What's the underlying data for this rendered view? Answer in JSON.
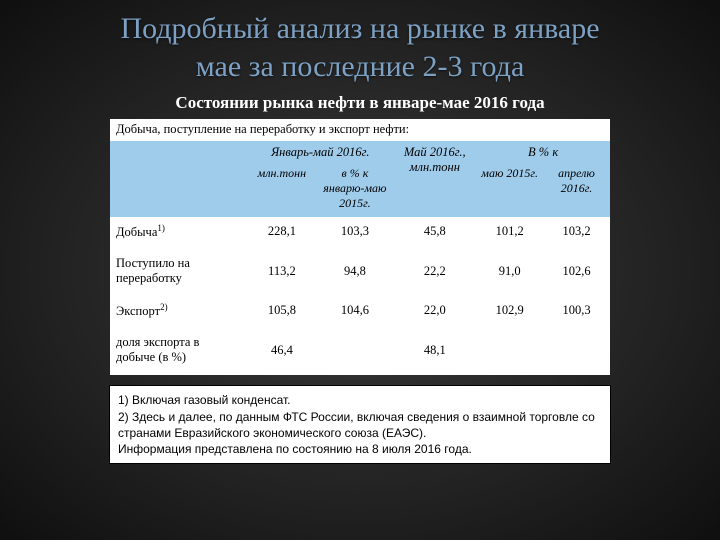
{
  "title_line1": "Подробный анализ на рынке в январе",
  "title_line2": "мае за последние 2-3 года",
  "subtitle": "Состоянии рынка нефти в январе-мае 2016 года",
  "table": {
    "caption": "Добыча, поступление на переработку и экспорт нефти:",
    "header_top": {
      "jan_may": "Январь-май 2016г.",
      "may": "Май 2016г., млн.тонн",
      "pct": "В % к"
    },
    "header_sub": {
      "mln": "млн.тонн",
      "pct_jan_may": "в % к январю-маю 2015г.",
      "may2015": "маю 2015г.",
      "apr2016": "апрелю 2016г."
    },
    "rows": [
      {
        "label": "Добыча",
        "sup": "1)",
        "c1": "228,1",
        "c2": "103,3",
        "c3": "45,8",
        "c4": "101,2",
        "c5": "103,2"
      },
      {
        "label": "Поступило на переработку",
        "sup": "",
        "c1": "113,2",
        "c2": "94,8",
        "c3": "22,2",
        "c4": "91,0",
        "c5": "102,6"
      },
      {
        "label": "Экспорт",
        "sup": "2)",
        "c1": "105,8",
        "c2": "104,6",
        "c3": "22,0",
        "c4": "102,9",
        "c5": "100,3"
      },
      {
        "label": "доля экспорта в добыче (в %)",
        "sup": "",
        "c1": "46,4",
        "c2": "",
        "c3": "48,1",
        "c4": "",
        "c5": ""
      }
    ]
  },
  "footnotes": {
    "l1": "1) Включая газовый конденсат.",
    "l2": "2) Здесь и далее, по данным ФТС России, включая сведения о взаимной торговле со странами Евразийского экономического союза (ЕАЭС).",
    "l3": "Информация представлена по состоянию на 8 июля 2016 года."
  },
  "colors": {
    "title": "#7da1c4",
    "header_bg": "#9fcceb",
    "text": "#000000",
    "subtitle": "#ffffff"
  }
}
